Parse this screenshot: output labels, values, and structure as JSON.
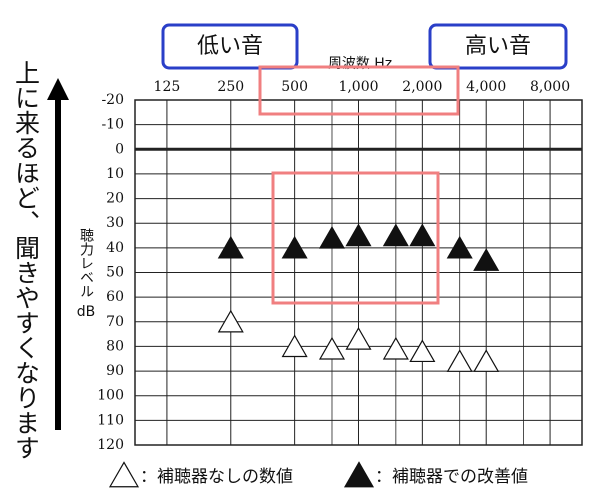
{
  "chart_data": {
    "type": "audiogram",
    "x_label": "周波数 Hz",
    "y_label": "聴力レベル",
    "y_unit": "dB",
    "side_note": "上に来るほど、聞きやすくなります",
    "low_label": "低い音",
    "high_label": "高い音",
    "xscale": "log",
    "xlim": [
      88.4,
      11314
    ],
    "xticks": [
      125,
      250,
      500,
      {
        "value": 1000,
        "label": "1,000"
      },
      {
        "value": 2000,
        "label": "2,000"
      },
      {
        "value": 4000,
        "label": "4,000"
      },
      {
        "value": 8000,
        "label": "8,000"
      }
    ],
    "xminorticks": [
      750,
      1500,
      3000,
      6000
    ],
    "ylim": [
      -20,
      120
    ],
    "yinverted": true,
    "yticks": [
      -20,
      -10,
      0,
      10,
      20,
      30,
      40,
      50,
      60,
      70,
      80,
      90,
      100,
      110,
      120
    ],
    "emphasis_line": 0,
    "series": [
      {
        "name": "：補聴器なしの数値",
        "marker": "open",
        "color": "#111111",
        "x": [
          250,
          500,
          750,
          1000,
          1500,
          2000,
          3000,
          4000
        ],
        "values": [
          70,
          80,
          81,
          77,
          81,
          82,
          86,
          86
        ]
      },
      {
        "name": "：補聴器での改善値",
        "marker": "filled",
        "color": "#111111",
        "x": [
          250,
          500,
          750,
          1000,
          1500,
          2000,
          3000,
          4000
        ],
        "values": [
          40,
          40,
          36,
          35,
          35,
          35,
          40,
          45
        ]
      }
    ]
  }
}
